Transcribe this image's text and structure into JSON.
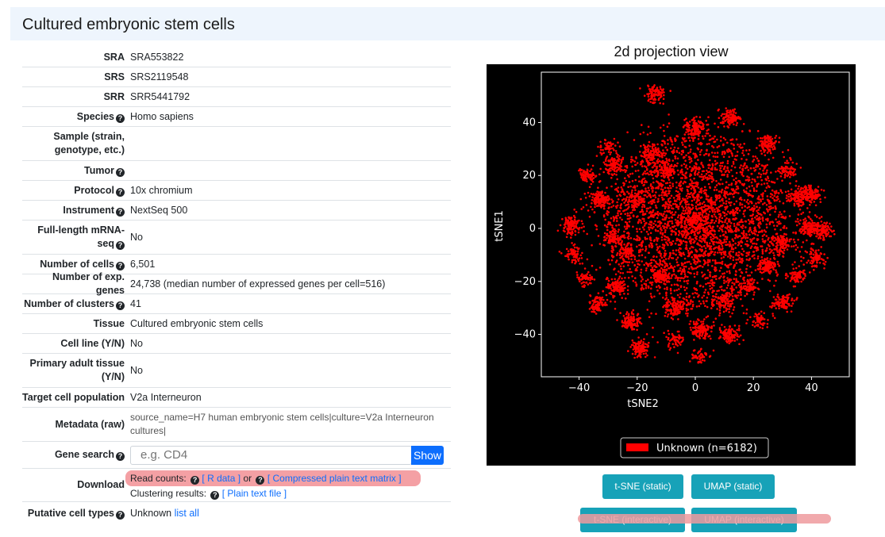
{
  "header": {
    "title": "Cultured embryonic stem cells"
  },
  "meta": {
    "sra": {
      "label": "SRA",
      "value": "SRA553822"
    },
    "srs": {
      "label": "SRS",
      "value": "SRS2119548"
    },
    "srr": {
      "label": "SRR",
      "value": "SRR5441792"
    },
    "species": {
      "label": "Species",
      "value": "Homo sapiens"
    },
    "sample": {
      "label": "Sample (strain, genotype, etc.)",
      "value": ""
    },
    "tumor": {
      "label": "Tumor",
      "value": ""
    },
    "protocol": {
      "label": "Protocol",
      "value": "10x chromium"
    },
    "instrument": {
      "label": "Instrument",
      "value": "NextSeq 500"
    },
    "fulllength": {
      "label": "Full-length mRNA-seq",
      "value": "No"
    },
    "ncells": {
      "label": "Number of cells",
      "value": "6,501"
    },
    "ngenes": {
      "label": "Number of exp. genes",
      "value": "24,738 (median number of expressed genes per cell=516)"
    },
    "nclusters": {
      "label": "Number of clusters",
      "value": "41"
    },
    "tissue": {
      "label": "Tissue",
      "value": "Cultured embryonic stem cells"
    },
    "cellline": {
      "label": "Cell line (Y/N)",
      "value": "No"
    },
    "primary": {
      "label": "Primary adult tissue (Y/N)",
      "value": "No"
    },
    "target": {
      "label": "Target cell population",
      "value": "V2a Interneuron"
    },
    "metadata": {
      "label": "Metadata (raw)",
      "value": "source_name=H7 human embryonic stem cells|culture=V2a Interneuron cultures|"
    },
    "genesearch": {
      "label": "Gene search",
      "placeholder": "e.g. CD4",
      "button": "Show"
    },
    "download": {
      "label": "Download",
      "read_counts": "Read counts:",
      "r_data": "[ R data ]",
      "or": "or",
      "compressed": "[ Compressed plain text matrix ]",
      "clustering": "Clustering results:",
      "plain": "[ Plain text file ]"
    },
    "celltypes": {
      "label": "Putative cell types",
      "value": "Unknown",
      "link": "list all"
    }
  },
  "chart_data": {
    "type": "scatter",
    "title": "2d projection view",
    "xlabel": "tSNE2",
    "ylabel": "tSNE1",
    "xlim": [
      -53,
      53
    ],
    "ylim": [
      -56,
      59
    ],
    "xticks": [
      -40,
      -20,
      0,
      20,
      40
    ],
    "yticks": [
      -40,
      -20,
      0,
      20,
      40
    ],
    "legend": [
      {
        "name": "Unknown (n=6182)",
        "color": "#ff0000"
      }
    ],
    "point_color": "#ff0000",
    "n_points": 6182,
    "background": "#000000"
  },
  "buttons": {
    "tsne_static": "t-SNE (static)",
    "umap_static": "UMAP (static)",
    "tsne_interactive": "t-SNE (interactive)",
    "umap_interactive": "UMAP (interactive)"
  }
}
